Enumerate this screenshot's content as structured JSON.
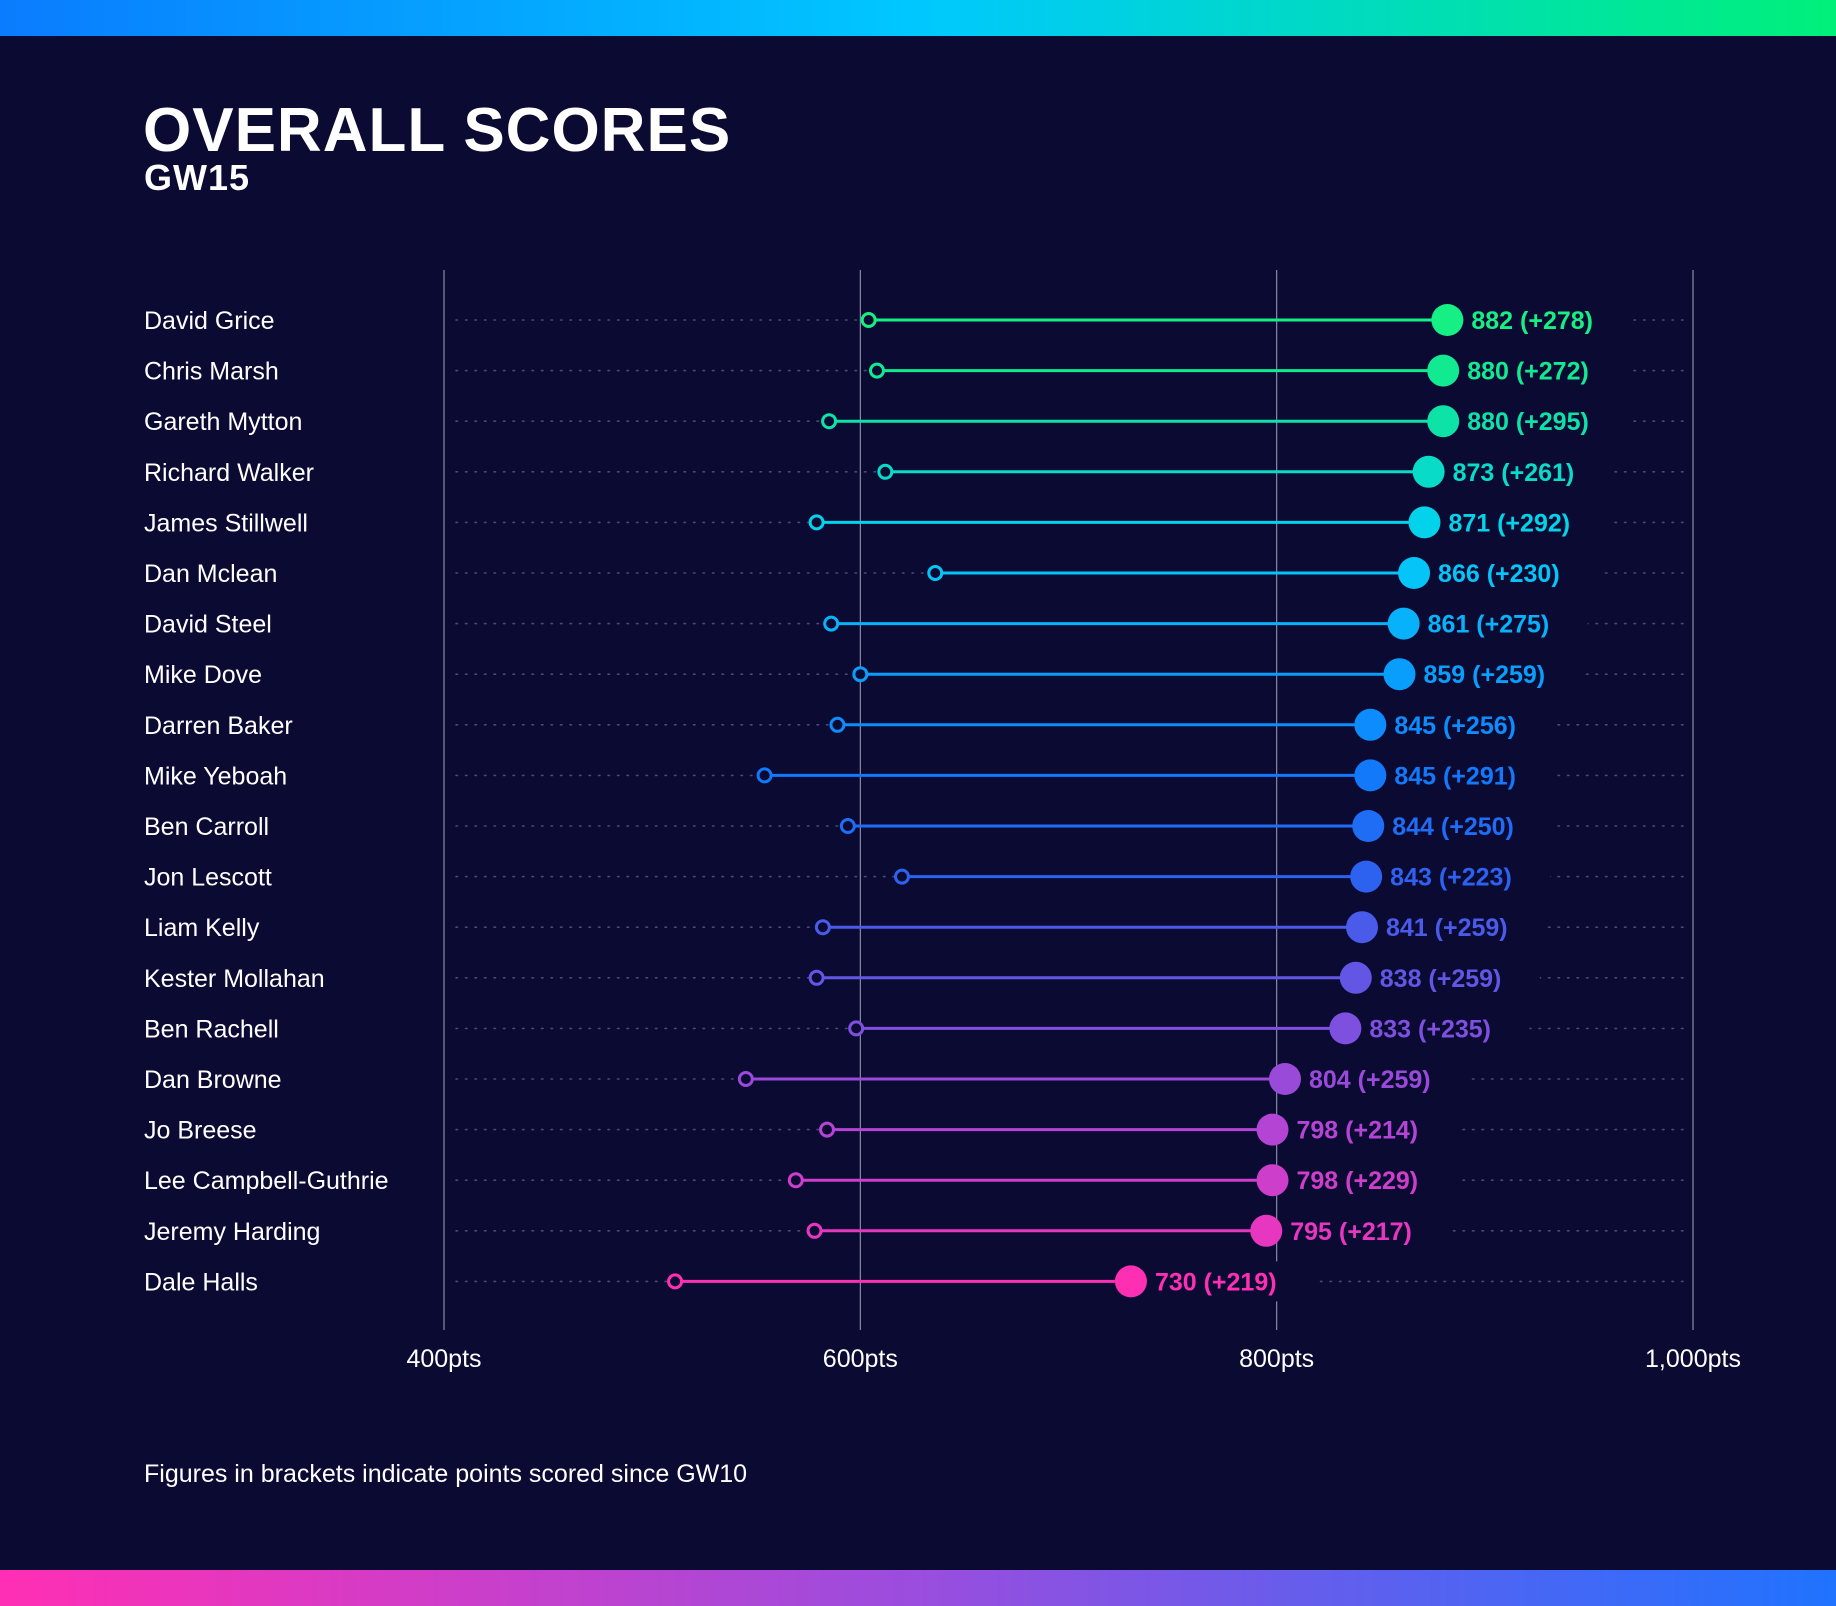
{
  "header": {
    "title": "OVERALL SCORES",
    "subtitle": "GW15"
  },
  "footnote": "Figures in brackets indicate points scored since GW10",
  "chart_data": {
    "type": "dumbbell",
    "title": "OVERALL SCORES",
    "subtitle": "GW15",
    "xlim": [
      400,
      1000
    ],
    "x_ticks": [
      400,
      600,
      800,
      1000
    ],
    "x_tick_labels": [
      "400pts",
      "600pts",
      "800pts",
      "1,000pts"
    ],
    "grid": true,
    "rows": [
      {
        "name": "David Grice",
        "score": 882,
        "gained": 278,
        "label": "882 (+278)",
        "color": "#16ef84"
      },
      {
        "name": "Chris Marsh",
        "score": 880,
        "gained": 272,
        "label": "880 (+272)",
        "color": "#12ea92"
      },
      {
        "name": "Gareth Mytton",
        "score": 880,
        "gained": 295,
        "label": "880 (+295)",
        "color": "#0ee3a7"
      },
      {
        "name": "Richard Walker",
        "score": 873,
        "gained": 261,
        "label": "873 (+261)",
        "color": "#08dcc8"
      },
      {
        "name": "James Stillwell",
        "score": 871,
        "gained": 292,
        "label": "871 (+292)",
        "color": "#03d3ea"
      },
      {
        "name": "Dan Mclean",
        "score": 866,
        "gained": 230,
        "label": "866 (+230)",
        "color": "#05c4f7"
      },
      {
        "name": "David Steel",
        "score": 861,
        "gained": 275,
        "label": "861 (+275)",
        "color": "#08b2fa"
      },
      {
        "name": "Mike Dove",
        "score": 859,
        "gained": 259,
        "label": "859 (+259)",
        "color": "#0a9efc"
      },
      {
        "name": "Darren Baker",
        "score": 845,
        "gained": 256,
        "label": "845 (+256)",
        "color": "#0c8cfd"
      },
      {
        "name": "Mike Yeboah",
        "score": 845,
        "gained": 291,
        "label": "845 (+291)",
        "color": "#1279fb"
      },
      {
        "name": "Ben Carroll",
        "score": 844,
        "gained": 250,
        "label": "844 (+250)",
        "color": "#1f6cf5"
      },
      {
        "name": "Jon Lescott",
        "score": 843,
        "gained": 223,
        "label": "843 (+223)",
        "color": "#2d62f0"
      },
      {
        "name": "Liam Kelly",
        "score": 841,
        "gained": 259,
        "label": "841 (+259)",
        "color": "#4a5be9"
      },
      {
        "name": "Kester Mollahan",
        "score": 838,
        "gained": 259,
        "label": "838 (+259)",
        "color": "#6456e4"
      },
      {
        "name": "Ben Rachell",
        "score": 833,
        "gained": 235,
        "label": "833 (+235)",
        "color": "#7e50df"
      },
      {
        "name": "Dan Browne",
        "score": 804,
        "gained": 259,
        "label": "804 (+259)",
        "color": "#9a4ad9"
      },
      {
        "name": "Jo Breese",
        "score": 798,
        "gained": 214,
        "label": "798 (+214)",
        "color": "#b444d3"
      },
      {
        "name": "Lee Campbell-Guthrie",
        "score": 798,
        "gained": 229,
        "label": "798 (+229)",
        "color": "#cd3ecb"
      },
      {
        "name": "Jeremy Harding",
        "score": 795,
        "gained": 217,
        "label": "795 (+217)",
        "color": "#e737c0"
      },
      {
        "name": "Dale Halls",
        "score": 730,
        "gained": 219,
        "label": "730 (+219)",
        "color": "#ff2fb4"
      }
    ]
  }
}
